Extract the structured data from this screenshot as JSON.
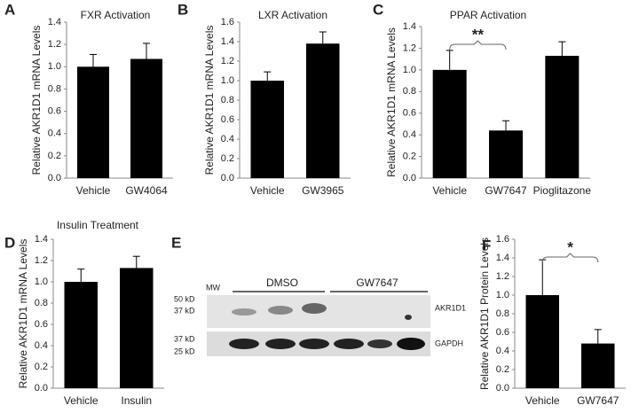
{
  "chart_data": [
    {
      "type": "bar",
      "panel_label": "A",
      "title": "FXR Activation",
      "ylabel": "Relative AKR1D1 mRNA Levels",
      "categories": [
        "Vehicle",
        "GW4064"
      ],
      "values": [
        1.0,
        1.07
      ],
      "errors": [
        0.11,
        0.14
      ],
      "color": "#000000",
      "ylim": [
        0,
        1.4
      ],
      "yticks": [
        {
          "value": 0,
          "label": "0.0"
        },
        0.2,
        0.4,
        0.6,
        0.8,
        {
          "value": 1,
          "label": "1.0"
        },
        1.2,
        1.4
      ]
    },
    {
      "type": "bar",
      "panel_label": "B",
      "title": "LXR Activation",
      "ylabel": "Relative AKR1D1 mRNA Levels",
      "categories": [
        "Vehicle",
        "GW3965"
      ],
      "values": [
        1.0,
        1.38
      ],
      "errors": [
        0.09,
        0.12
      ],
      "color": "#000000",
      "ylim": [
        0,
        1.6
      ],
      "yticks": [
        {
          "value": 0,
          "label": "0.0"
        },
        0.2,
        0.4,
        0.6,
        0.8,
        {
          "value": 1,
          "label": "1.0"
        },
        1.2,
        1.4,
        1.6
      ]
    },
    {
      "type": "bar",
      "panel_label": "C",
      "title": "PPAR Activation",
      "ylabel": "Relative AKR1D1 mRNA Levels",
      "categories": [
        "Vehicle",
        "GW7647",
        "Pioglitazone"
      ],
      "values": [
        1.0,
        0.44,
        1.13
      ],
      "errors": [
        0.18,
        0.09,
        0.13
      ],
      "color": "#000000",
      "ylim": [
        0,
        1.4
      ],
      "yticks": [
        {
          "value": 0,
          "label": "0.0"
        },
        0.2,
        0.4,
        0.6,
        0.8,
        {
          "value": 1,
          "label": "1.0"
        },
        1.2,
        1.4
      ],
      "annotation": "**"
    },
    {
      "type": "bar",
      "panel_label": "D",
      "title": "Insulin Treatment",
      "ylabel": "Relative AKR1D1 mRNA Levels",
      "categories": [
        "Vehicle",
        "Insulin"
      ],
      "values": [
        1.0,
        1.13
      ],
      "errors": [
        0.12,
        0.11
      ],
      "color": "#000000",
      "ylim": [
        0,
        1.4
      ],
      "yticks": [
        {
          "value": 0,
          "label": "0.0"
        },
        0.2,
        0.4,
        0.6,
        0.8,
        {
          "value": 1,
          "label": "1.0"
        },
        1.2,
        1.4
      ]
    },
    {
      "type": "bar",
      "panel_label": "F",
      "ylabel": "Relative AKR1D1 Protein Levels",
      "categories": [
        "Vehicle",
        "GW7647"
      ],
      "values": [
        1.0,
        0.48
      ],
      "errors": [
        0.38,
        0.15
      ],
      "color": "#000000",
      "ylim": [
        0,
        1.6
      ],
      "yticks": [
        {
          "value": 0,
          "label": "0.0"
        },
        0.2,
        0.4,
        0.6,
        0.8,
        {
          "value": 1,
          "label": "1.0"
        },
        1.2,
        1.4,
        1.6
      ],
      "annotation": "*"
    }
  ],
  "blot_panel": {
    "panel_label": "E",
    "ladder": "MW",
    "groups": [
      "DMSO",
      "GW7647"
    ],
    "proteins": [
      "AKR1D1",
      "GAPDH"
    ],
    "markers": [
      "50 kD",
      "37 kD",
      "37 kD",
      "25 kD"
    ]
  }
}
